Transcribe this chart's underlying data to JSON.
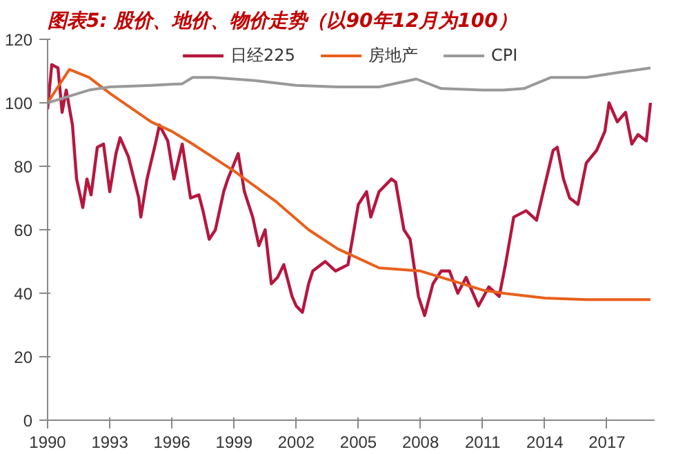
{
  "chart_data": {
    "type": "line",
    "title": "图表5: 股价、地价、物价走势（以90年12月为100）",
    "xlim": [
      1990,
      2019.3
    ],
    "ylim": [
      0,
      120
    ],
    "xticks": [
      1990,
      1993,
      1996,
      1999,
      2002,
      2005,
      2008,
      2011,
      2014,
      2017
    ],
    "yticks": [
      0,
      20,
      40,
      60,
      80,
      100,
      120
    ],
    "grid": false,
    "legend": "top",
    "line_style": "solid",
    "marker": "none",
    "series": [
      {
        "name": "日经225",
        "color": "#b5173f",
        "x": [
          1990.0,
          1990.2,
          1990.5,
          1990.7,
          1990.9,
          1991.2,
          1991.4,
          1991.7,
          1991.9,
          1992.1,
          1992.4,
          1992.7,
          1993.0,
          1993.3,
          1993.5,
          1993.9,
          1994.4,
          1994.5,
          1994.8,
          1995.2,
          1995.4,
          1995.8,
          1996.1,
          1996.5,
          1996.9,
          1997.3,
          1997.5,
          1997.8,
          1998.1,
          1998.5,
          1998.7,
          1999.2,
          1999.5,
          1999.9,
          2000.2,
          2000.5,
          2000.8,
          2001.1,
          2001.4,
          2001.8,
          2002.0,
          2002.3,
          2002.6,
          2002.8,
          2003.4,
          2003.9,
          2004.5,
          2005.0,
          2005.4,
          2005.6,
          2006.0,
          2006.6,
          2006.8,
          2007.2,
          2007.5,
          2007.9,
          2008.2,
          2008.6,
          2009.0,
          2009.4,
          2009.8,
          2010.2,
          2010.8,
          2011.3,
          2011.8,
          2012.1,
          2012.5,
          2013.1,
          2013.6,
          2014.0,
          2014.4,
          2014.6,
          2014.9,
          2015.2,
          2015.6,
          2016.0,
          2016.5,
          2016.9,
          2017.1,
          2017.5,
          2017.9,
          2018.2,
          2018.5,
          2018.9,
          2019.1
        ],
        "values": [
          98,
          112,
          111,
          97,
          104,
          93,
          76,
          67,
          76,
          71,
          86,
          87,
          72,
          84,
          89,
          83,
          70,
          64,
          76,
          87,
          93,
          88,
          76,
          87,
          70,
          71,
          66,
          57,
          60,
          72,
          76,
          84,
          72,
          64,
          55,
          60,
          43,
          45,
          49,
          39,
          36,
          34,
          43,
          47,
          50,
          47,
          49,
          68,
          72,
          64,
          72,
          76,
          75,
          60,
          57,
          39,
          33,
          43,
          47,
          47,
          40,
          45,
          36,
          42,
          39,
          49,
          64,
          66,
          63,
          74,
          85,
          86,
          76,
          70,
          68,
          81,
          85,
          91,
          100,
          94,
          97,
          87,
          90,
          88,
          100
        ]
      },
      {
        "name": "房地产",
        "color": "#e8601c",
        "x": [
          1990.0,
          1990.5,
          1991.05,
          1992.0,
          1993.0,
          1995.0,
          1996.0,
          1997.0,
          1999.0,
          2001.0,
          2002.6,
          2004.0,
          2005.0,
          2006.0,
          2008.0,
          2010.0,
          2011.0,
          2012.0,
          2014.0,
          2016.0,
          2019.1
        ],
        "values": [
          100,
          105,
          110.5,
          108,
          103,
          94,
          91,
          87,
          78.5,
          69,
          60,
          54,
          51,
          48,
          47,
          43,
          41,
          40,
          38.5,
          38,
          38
        ]
      },
      {
        "name": "CPI",
        "color": "#999999",
        "x": [
          1990.0,
          1991.0,
          1992.0,
          1993.0,
          1995.0,
          1996.5,
          1997.0,
          1998.0,
          2000.0,
          2002.0,
          2004.0,
          2006.0,
          2007.8,
          2009.0,
          2011.0,
          2012.0,
          2013.0,
          2014.3,
          2016.0,
          2017.5,
          2019.1
        ],
        "values": [
          100,
          102,
          104,
          105,
          105.5,
          106,
          108,
          108,
          107,
          105.5,
          105,
          105,
          107.5,
          104.5,
          104,
          104,
          104.5,
          108,
          108,
          109.5,
          111
        ]
      }
    ]
  }
}
